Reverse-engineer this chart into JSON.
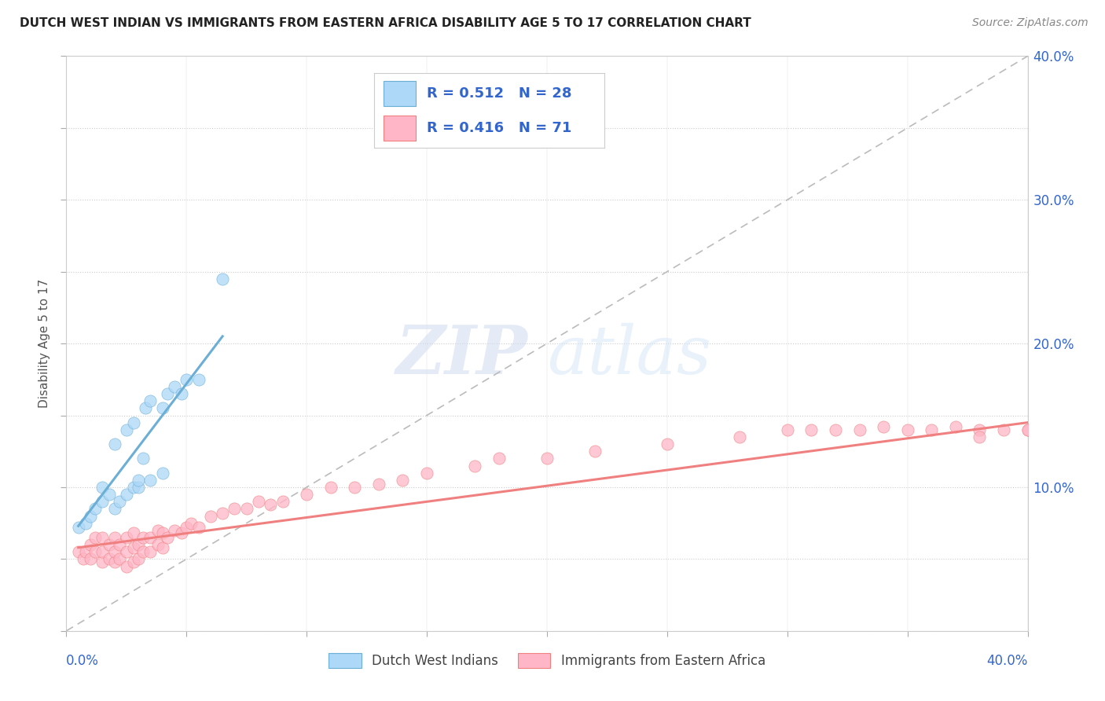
{
  "title": "DUTCH WEST INDIAN VS IMMIGRANTS FROM EASTERN AFRICA DISABILITY AGE 5 TO 17 CORRELATION CHART",
  "source": "Source: ZipAtlas.com",
  "ylabel": "Disability Age 5 to 17",
  "xlim": [
    0.0,
    0.4
  ],
  "ylim": [
    0.0,
    0.4
  ],
  "blue_color": "#6BAED6",
  "pink_color": "#F08080",
  "blue_fill": "#ADD8F7",
  "pink_fill": "#FFB6C6",
  "blue_R": 0.512,
  "blue_N": 28,
  "pink_R": 0.416,
  "pink_N": 71,
  "legend_label_blue": "Dutch West Indians",
  "legend_label_pink": "Immigrants from Eastern Africa",
  "stat_color": "#3366CC",
  "watermark_zip": "ZIP",
  "watermark_atlas": "atlas",
  "background_color": "#FFFFFF",
  "grid_color": "#CCCCCC",
  "blue_scatter_x": [
    0.005,
    0.008,
    0.01,
    0.012,
    0.015,
    0.015,
    0.018,
    0.02,
    0.02,
    0.022,
    0.025,
    0.025,
    0.028,
    0.028,
    0.03,
    0.03,
    0.032,
    0.033,
    0.035,
    0.035,
    0.04,
    0.04,
    0.042,
    0.045,
    0.048,
    0.05,
    0.055,
    0.065
  ],
  "blue_scatter_y": [
    0.072,
    0.075,
    0.08,
    0.085,
    0.09,
    0.1,
    0.095,
    0.085,
    0.13,
    0.09,
    0.095,
    0.14,
    0.1,
    0.145,
    0.1,
    0.105,
    0.12,
    0.155,
    0.105,
    0.16,
    0.11,
    0.155,
    0.165,
    0.17,
    0.165,
    0.175,
    0.175,
    0.245
  ],
  "pink_scatter_x": [
    0.005,
    0.007,
    0.008,
    0.01,
    0.01,
    0.012,
    0.012,
    0.015,
    0.015,
    0.015,
    0.018,
    0.018,
    0.02,
    0.02,
    0.02,
    0.022,
    0.022,
    0.025,
    0.025,
    0.025,
    0.028,
    0.028,
    0.028,
    0.03,
    0.03,
    0.032,
    0.032,
    0.035,
    0.035,
    0.038,
    0.038,
    0.04,
    0.04,
    0.042,
    0.045,
    0.048,
    0.05,
    0.052,
    0.055,
    0.06,
    0.065,
    0.07,
    0.075,
    0.08,
    0.085,
    0.09,
    0.1,
    0.11,
    0.12,
    0.13,
    0.14,
    0.15,
    0.17,
    0.18,
    0.2,
    0.22,
    0.25,
    0.28,
    0.3,
    0.31,
    0.32,
    0.33,
    0.34,
    0.35,
    0.36,
    0.37,
    0.38,
    0.38,
    0.39,
    0.4,
    0.4
  ],
  "pink_scatter_y": [
    0.055,
    0.05,
    0.055,
    0.05,
    0.06,
    0.055,
    0.065,
    0.048,
    0.055,
    0.065,
    0.05,
    0.06,
    0.048,
    0.055,
    0.065,
    0.05,
    0.06,
    0.045,
    0.055,
    0.065,
    0.048,
    0.058,
    0.068,
    0.05,
    0.06,
    0.055,
    0.065,
    0.055,
    0.065,
    0.06,
    0.07,
    0.058,
    0.068,
    0.065,
    0.07,
    0.068,
    0.072,
    0.075,
    0.072,
    0.08,
    0.082,
    0.085,
    0.085,
    0.09,
    0.088,
    0.09,
    0.095,
    0.1,
    0.1,
    0.102,
    0.105,
    0.11,
    0.115,
    0.12,
    0.12,
    0.125,
    0.13,
    0.135,
    0.14,
    0.14,
    0.14,
    0.14,
    0.142,
    0.14,
    0.14,
    0.142,
    0.14,
    0.135,
    0.14,
    0.14,
    0.14
  ],
  "blue_trend_x": [
    0.005,
    0.065
  ],
  "blue_trend_y": [
    0.073,
    0.205
  ],
  "pink_trend_x": [
    0.005,
    0.4
  ],
  "pink_trend_y": [
    0.058,
    0.145
  ]
}
